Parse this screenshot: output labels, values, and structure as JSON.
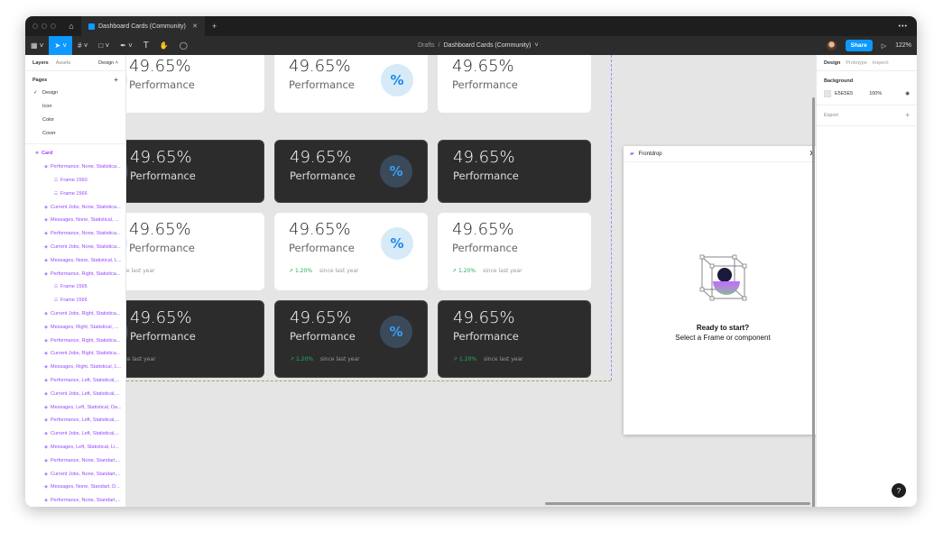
{
  "tabbar": {
    "tab_title": "Dashboard Cards (Community)",
    "close": "✕",
    "plus": "+",
    "more": "•••",
    "home": "⌂"
  },
  "toolbar": {
    "breadcrumb_parent": "Drafts",
    "breadcrumb_sep": "/",
    "file_name": "Dashboard Cards (Community)",
    "share": "Share",
    "zoom": "122%",
    "tools": [
      "main-menu",
      "move",
      "frame",
      "shape",
      "pen",
      "text",
      "hand",
      "comment"
    ]
  },
  "left": {
    "tabs": [
      "Layers",
      "Assets"
    ],
    "page_select": "Design ˄",
    "pages_title": "Pages",
    "add": "+",
    "pages": [
      {
        "label": "Design",
        "current": true
      },
      {
        "label": "Icon"
      },
      {
        "label": "Color"
      },
      {
        "label": "Cover"
      }
    ],
    "root_layer": "Card",
    "layers": [
      {
        "label": "Performance, None, Statistica...",
        "level": 1
      },
      {
        "label": "Frame 1560",
        "level": 2
      },
      {
        "label": "Frame 1566",
        "level": 2
      },
      {
        "label": "Current Jobs, None, Statistica...",
        "level": 1
      },
      {
        "label": "Messages, None, Statistical, ...",
        "level": 1
      },
      {
        "label": "Performance, None, Statistica...",
        "level": 1
      },
      {
        "label": "Current Jobs, None, Statistica...",
        "level": 1
      },
      {
        "label": "Messages, None, Statistical, L...",
        "level": 1
      },
      {
        "label": "Performance, Right, Statistica...",
        "level": 1
      },
      {
        "label": "Frame 1565",
        "level": 2
      },
      {
        "label": "Frame 1566",
        "level": 2
      },
      {
        "label": "Current Jobs, Right, Statistica...",
        "level": 1
      },
      {
        "label": "Messages, Right, Statistical, ...",
        "level": 1
      },
      {
        "label": "Performance, Right, Statistica...",
        "level": 1
      },
      {
        "label": "Current Jobs, Right, Statistica...",
        "level": 1
      },
      {
        "label": "Messages, Right, Statistical, L...",
        "level": 1
      },
      {
        "label": "Performance, Left, Statistical,...",
        "level": 1
      },
      {
        "label": "Current Jobs, Left, Statistical,...",
        "level": 1
      },
      {
        "label": "Messages, Left, Statistical, Da...",
        "level": 1
      },
      {
        "label": "Performance, Left, Statistical,...",
        "level": 1
      },
      {
        "label": "Current Jobs, Left, Statistical,...",
        "level": 1
      },
      {
        "label": "Messages, Left, Statistical, Li...",
        "level": 1
      },
      {
        "label": "Performance, None, Standart,...",
        "level": 1
      },
      {
        "label": "Current Jobs, None, Standart,...",
        "level": 1
      },
      {
        "label": "Messages, None, Standart, D...",
        "level": 1
      },
      {
        "label": "Performance, None, Standart,...",
        "level": 1
      }
    ]
  },
  "right": {
    "tabs": [
      "Design",
      "Prototype",
      "Inspect"
    ],
    "background_title": "Background",
    "bg_hex": "E5E5E5",
    "bg_opacity": "100%",
    "export": "Export",
    "add": "+"
  },
  "cards": {
    "value": "49.65%",
    "label": "Performance",
    "trend": "1.20%",
    "since": "since last year",
    "icon": "%",
    "arrow": "↗"
  },
  "plugin": {
    "title": "Frontdrop",
    "close": "✕",
    "ready": "Ready to start?",
    "hint": "Select a Frame or component"
  },
  "help": "?",
  "colors": {
    "accent": "#0d99ff",
    "layer_purple": "#9747ff",
    "trend_green": "#27ae60",
    "card_dark": "#2c2c2c",
    "canvas": "#E5E5E5"
  }
}
